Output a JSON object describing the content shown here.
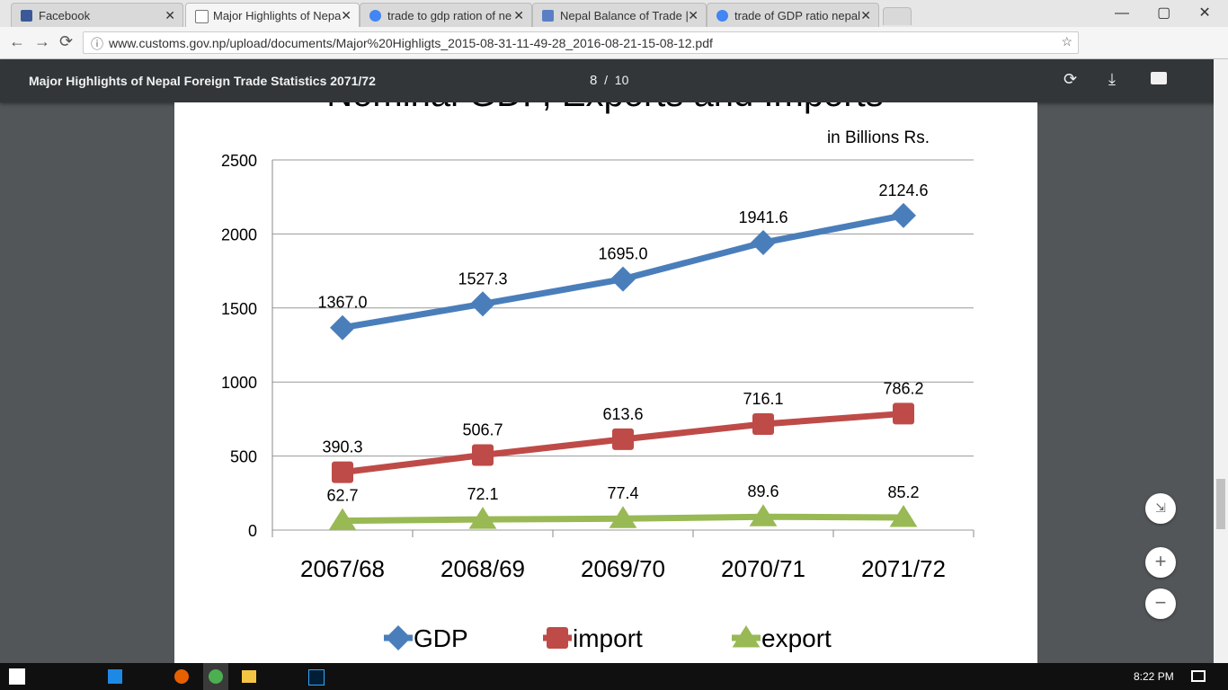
{
  "browser": {
    "tabs": [
      "Facebook",
      "Major Highlights of Nepa",
      "trade to gdp ration of ne",
      "Nepal Balance of Trade |",
      "trade of GDP ratio nepal"
    ],
    "url": "www.customs.gov.np/upload/documents/Major%20Highligts_2015-08-31-11-49-28_2016-08-21-15-08-12.pdf"
  },
  "pdf_viewer": {
    "title": "Major Highlights of Nepal Foreign Trade Statistics 2071/72",
    "page_current": "8",
    "page_separator": "/",
    "page_total": "10"
  },
  "chart_data": {
    "type": "line",
    "title": "Nominal GDP, Exports and Imports",
    "unit_label": "in Billions Rs.",
    "categories": [
      "2067/68",
      "2068/69",
      "2069/70",
      "2070/71",
      "2071/72"
    ],
    "series": [
      {
        "name": "GDP",
        "color": "#4a7ebb",
        "marker": "diamond",
        "values": [
          1367,
          1527.3,
          1695,
          1941.6,
          2124.6
        ],
        "value_labels": [
          "1367.0",
          "1527.3",
          "1695.0",
          "1941.6",
          "2124.6"
        ]
      },
      {
        "name": "import",
        "color": "#be4b48",
        "marker": "square",
        "values": [
          390.3,
          506.7,
          613.6,
          716.1,
          786.2
        ]
      },
      {
        "name": "export",
        "color": "#98b954",
        "marker": "triangle",
        "values": [
          62.7,
          72.1,
          77.4,
          89.6,
          85.2
        ]
      }
    ],
    "ylim": [
      0,
      2500
    ],
    "yticks": [
      0,
      500,
      1000,
      1500,
      2000,
      2500
    ],
    "grid": true,
    "legend": "bottom"
  },
  "taskbar": {
    "time": "8:22 PM"
  }
}
